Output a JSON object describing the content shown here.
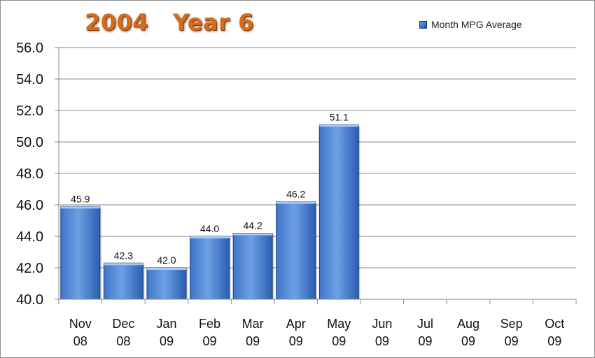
{
  "chart_data": {
    "type": "bar",
    "title": "2004   Year 6",
    "legend": {
      "label": "Month MPG Average",
      "position": "top-right"
    },
    "categories": [
      [
        "Nov",
        "08"
      ],
      [
        "Dec",
        "08"
      ],
      [
        "Jan",
        "09"
      ],
      [
        "Feb",
        "09"
      ],
      [
        "Mar",
        "09"
      ],
      [
        "Apr",
        "09"
      ],
      [
        "May",
        "09"
      ],
      [
        "Jun",
        "09"
      ],
      [
        "Jul",
        "09"
      ],
      [
        "Aug",
        "09"
      ],
      [
        "Sep",
        "09"
      ],
      [
        "Oct",
        "09"
      ]
    ],
    "series": [
      {
        "name": "Month MPG Average",
        "values": [
          45.9,
          42.3,
          42.0,
          44.0,
          44.2,
          46.2,
          51.1,
          null,
          null,
          null,
          null,
          null
        ],
        "labels": [
          "45.9",
          "42.3",
          "42.0",
          "44.0",
          "44.2",
          "46.2",
          "51.1",
          null,
          null,
          null,
          null,
          null
        ]
      }
    ],
    "ylim": [
      40.0,
      56.0
    ],
    "yticks": [
      "40.0",
      "42.0",
      "44.0",
      "46.0",
      "48.0",
      "50.0",
      "52.0",
      "54.0",
      "56.0"
    ],
    "grid": true,
    "colors": {
      "bar_light": "#6ea0e6",
      "bar_dark": "#1f4e99",
      "bar_edge": "#16407f",
      "title": "#d96a17"
    }
  }
}
